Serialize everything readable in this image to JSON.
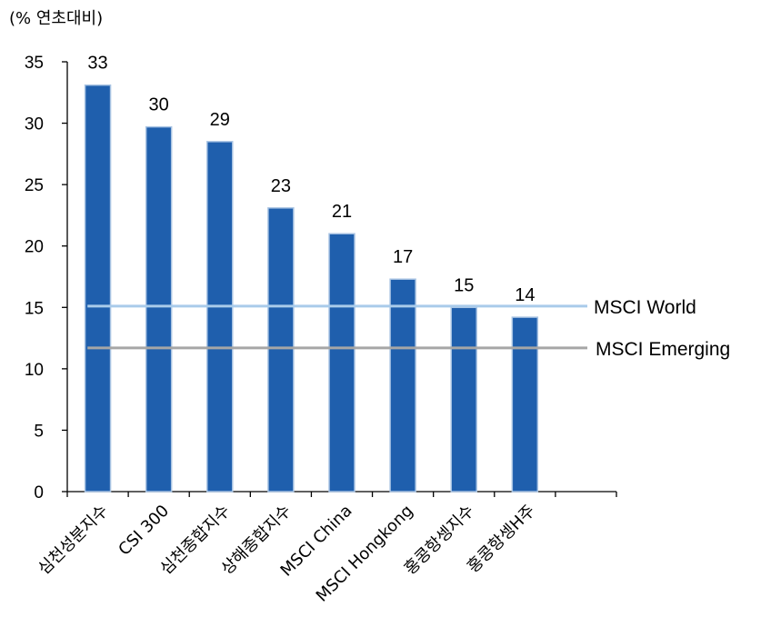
{
  "chart_data": {
    "type": "bar",
    "unit_label": "(% 연초대비)",
    "categories": [
      "심천성분지수",
      "CSI 300",
      "심천종합지수",
      "상해종합지수",
      "MSCI China",
      "MSCI Hongkong",
      "홍콩항셍지수",
      "홍콩항셍H주"
    ],
    "values": [
      33.1,
      29.7,
      28.5,
      23.1,
      21.0,
      17.3,
      15.0,
      14.2
    ],
    "data_labels": [
      "33",
      "30",
      "29",
      "23",
      "21",
      "17",
      "15",
      "14"
    ],
    "ylim": [
      0,
      35
    ],
    "yticks": [
      0,
      5,
      10,
      15,
      20,
      25,
      30,
      35
    ],
    "ytick_labels": [
      "0",
      "5",
      "10",
      "15",
      "20",
      "25",
      "30",
      "35"
    ],
    "bar_color": "#1F5FAD",
    "bar_edge_color": "#A9C4E3",
    "reference_lines": [
      {
        "name": "MSCI World",
        "value": 15.1,
        "color": "#A9CBEA"
      },
      {
        "name": "MSCI Emerging",
        "value": 11.7,
        "color": "#A6A6A6"
      }
    ]
  }
}
